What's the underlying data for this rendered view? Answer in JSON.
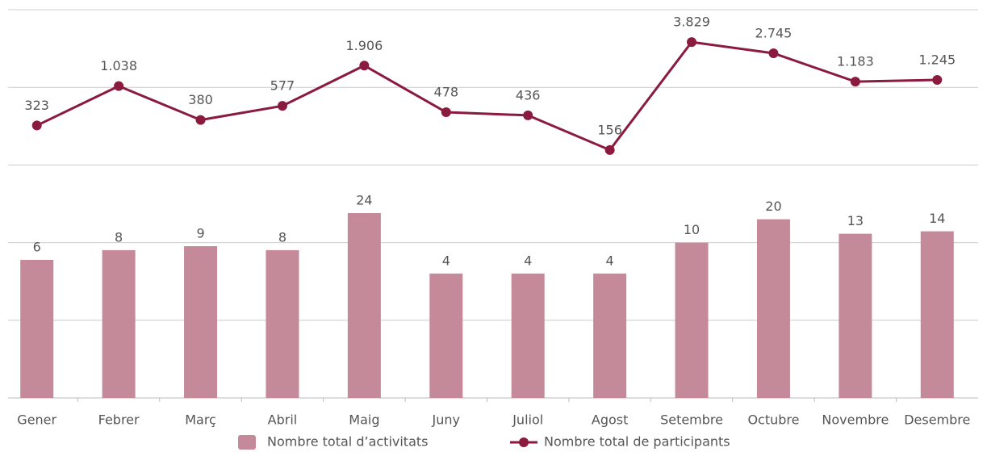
{
  "chart_data": {
    "type": "bar-line",
    "categories": [
      "Gener",
      "Febrer",
      "Març",
      "Abril",
      "Maig",
      "Juny",
      "Juliol",
      "Agost",
      "Setembre",
      "Octubre",
      "Novembre",
      "Desembre"
    ],
    "series": [
      {
        "name": "Nombre total d’activitats",
        "type": "bar",
        "color": "#c48a9a",
        "values": [
          6,
          8,
          9,
          8,
          24,
          4,
          4,
          4,
          10,
          20,
          13,
          14
        ]
      },
      {
        "name": "Nombre total de participants",
        "type": "line",
        "color": "#8b1a3f",
        "values": [
          323,
          1038,
          380,
          577,
          1906,
          478,
          436,
          156,
          3829,
          2745,
          1183,
          1245
        ],
        "value_labels": [
          "323",
          "1.038",
          "380",
          "577",
          "1.906",
          "478",
          "436",
          "156",
          "3.829",
          "2.745",
          "1.183",
          "1.245"
        ]
      }
    ],
    "yscale": "log",
    "ylim": [
      0.1,
      10000
    ],
    "yticks": [
      0.1,
      1,
      10,
      100,
      1000,
      10000
    ],
    "grid": true,
    "legend": "bottom"
  }
}
